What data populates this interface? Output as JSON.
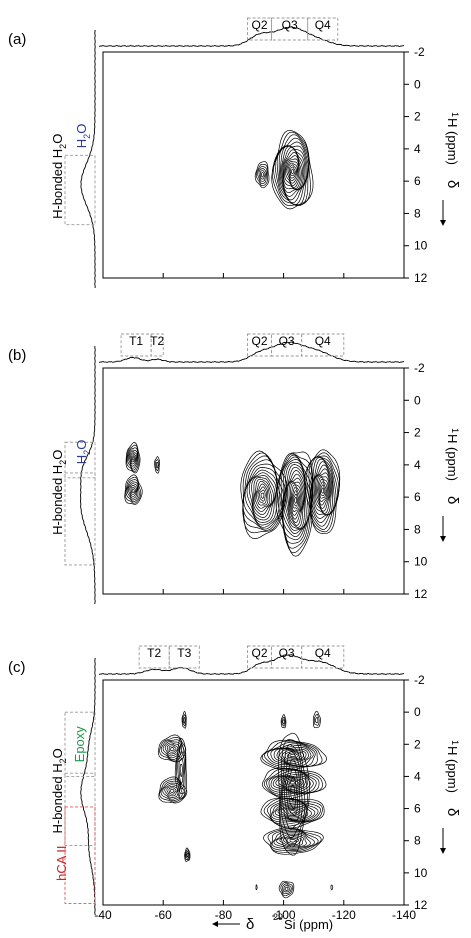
{
  "figure": {
    "x_axis_label_delta": "δ",
    "x_axis_label_nucleus": "29",
    "x_axis_label_rest": "Si (ppm)",
    "y_axis_label_nucleus": "1",
    "y_axis_label_rest": "H (ppm)",
    "y_axis_delta": "δ"
  },
  "chart_data": [
    {
      "type": "heatmap",
      "panel_label": "(a)",
      "xlim": [
        -40,
        -140
      ],
      "ylim": [
        -2,
        12
      ],
      "x_ticks": [
        -40,
        -60,
        -80,
        -100,
        -120,
        -140
      ],
      "y_ticks": [
        -2,
        0,
        2,
        4,
        6,
        8,
        10,
        12
      ],
      "x_tick_labels_shown": false,
      "top_projection": {
        "regions": [
          {
            "label": "Q2",
            "x_range": [
              -88,
              -96
            ]
          },
          {
            "label": "Q3",
            "x_range": [
              -96,
              -108
            ]
          },
          {
            "label": "Q4",
            "x_range": [
              -108,
              -118
            ]
          }
        ],
        "peaks": [
          {
            "x": -92,
            "height": 0.55,
            "width": 3.5
          },
          {
            "x": -102,
            "height": 1.0,
            "width": 5.0
          },
          {
            "x": -111,
            "height": 0.3,
            "width": 4.5
          }
        ]
      },
      "left_projection": {
        "annotations": [
          {
            "label": "H-bonded H",
            "sub": "2",
            "tail": "O",
            "color": "#000000"
          },
          {
            "label": "H",
            "sub": "2",
            "tail": "O",
            "color": "#2b3a9c"
          }
        ],
        "regions": [
          {
            "y_range": [
              4.4,
              8.7
            ]
          }
        ],
        "peaks": [
          {
            "y": 6.2,
            "height": 1.0,
            "width": 1.3
          }
        ]
      },
      "contours": [
        {
          "x": -103,
          "y": 5.4,
          "rx": 6.5,
          "ry": 2.4,
          "levels": 18
        },
        {
          "x": -93,
          "y": 5.6,
          "rx": 2.2,
          "ry": 0.8,
          "levels": 6
        }
      ]
    },
    {
      "type": "heatmap",
      "panel_label": "(b)",
      "xlim": [
        -40,
        -140
      ],
      "ylim": [
        -2,
        12
      ],
      "x_ticks": [
        -40,
        -60,
        -80,
        -100,
        -120,
        -140
      ],
      "y_ticks": [
        -2,
        0,
        2,
        4,
        6,
        8,
        10,
        12
      ],
      "x_tick_labels_shown": false,
      "top_projection": {
        "regions": [
          {
            "label": "T1",
            "x_range": [
              -46,
              -56
            ]
          },
          {
            "label": "T2",
            "x_range": [
              -56,
              -60
            ]
          },
          {
            "label": "Q2",
            "x_range": [
              -88,
              -96
            ]
          },
          {
            "label": "Q3",
            "x_range": [
              -96,
              -106
            ]
          },
          {
            "label": "Q4",
            "x_range": [
              -106,
              -120
            ]
          }
        ],
        "peaks": [
          {
            "x": -50,
            "height": 0.25,
            "width": 2.5
          },
          {
            "x": -58,
            "height": 0.15,
            "width": 2.0
          },
          {
            "x": -92,
            "height": 0.4,
            "width": 3.5
          },
          {
            "x": -101,
            "height": 1.0,
            "width": 5.0
          },
          {
            "x": -111,
            "height": 0.55,
            "width": 5.0
          }
        ]
      },
      "left_projection": {
        "annotations": [
          {
            "label": "H-bonded H",
            "sub": "2",
            "tail": "O",
            "color": "#000000"
          },
          {
            "label": "H",
            "sub": "2",
            "tail": "O",
            "color": "#2b3a9c"
          }
        ],
        "regions": [
          {
            "y_range": [
              2.6,
              4.8
            ]
          },
          {
            "y_range": [
              4.5,
              10.2
            ]
          }
        ],
        "peaks": [
          {
            "y": 4.2,
            "height": 0.55,
            "width": 0.9
          },
          {
            "y": 6.5,
            "height": 1.0,
            "width": 1.6
          }
        ]
      },
      "contours": [
        {
          "x": -50,
          "y": 3.6,
          "rx": 2.3,
          "ry": 0.9,
          "levels": 8
        },
        {
          "x": -50,
          "y": 5.6,
          "rx": 2.8,
          "ry": 0.9,
          "levels": 8
        },
        {
          "x": -58,
          "y": 4.0,
          "rx": 0.8,
          "ry": 0.5,
          "levels": 3
        },
        {
          "x": -93,
          "y": 5.9,
          "rx": 7.5,
          "ry": 2.6,
          "levels": 16
        },
        {
          "x": -104,
          "y": 6.2,
          "rx": 6.0,
          "ry": 3.2,
          "levels": 18
        },
        {
          "x": -113,
          "y": 5.6,
          "rx": 5.5,
          "ry": 2.6,
          "levels": 16
        }
      ]
    },
    {
      "type": "heatmap",
      "panel_label": "(c)",
      "xlim": [
        -40,
        -140
      ],
      "ylim": [
        -2,
        12
      ],
      "x_ticks": [
        -40,
        -60,
        -80,
        -100,
        -120,
        -140
      ],
      "y_ticks": [
        -2,
        0,
        2,
        4,
        6,
        8,
        10,
        12
      ],
      "x_tick_labels_shown": true,
      "top_projection": {
        "regions": [
          {
            "label": "T2",
            "x_range": [
              -52,
              -62
            ]
          },
          {
            "label": "T3",
            "x_range": [
              -62,
              -72
            ]
          },
          {
            "label": "Q2",
            "x_range": [
              -88,
              -96
            ]
          },
          {
            "label": "Q3",
            "x_range": [
              -96,
              -106
            ]
          },
          {
            "label": "Q4",
            "x_range": [
              -106,
              -120
            ]
          }
        ],
        "peaks": [
          {
            "x": -57,
            "height": 0.25,
            "width": 3.0
          },
          {
            "x": -66,
            "height": 0.35,
            "width": 3.0
          },
          {
            "x": -92,
            "height": 0.45,
            "width": 3.0
          },
          {
            "x": -101,
            "height": 1.0,
            "width": 4.5
          },
          {
            "x": -112,
            "height": 0.65,
            "width": 5.0
          }
        ]
      },
      "left_projection": {
        "annotations": [
          {
            "label": "Epoxy",
            "sub": "",
            "tail": "",
            "color": "#1b9a4a"
          },
          {
            "label": "H-bonded H",
            "sub": "2",
            "tail": "O",
            "color": "#000000"
          },
          {
            "label": "hCA II",
            "sub": "",
            "tail": "",
            "color": "#cc2222"
          }
        ],
        "regions": [
          {
            "y_range": [
              0.0,
              4.0
            ]
          },
          {
            "y_range": [
              3.8,
              8.3
            ]
          },
          {
            "y_range": [
              5.9,
              11.9
            ]
          }
        ],
        "region_colors": [
          "#999999",
          "#999999",
          "#e05555"
        ],
        "peaks": [
          {
            "y": 2.0,
            "height": 0.35,
            "width": 1.0
          },
          {
            "y": 5.0,
            "height": 1.0,
            "width": 1.4
          },
          {
            "y": 8.5,
            "height": 0.4,
            "width": 1.2
          }
        ]
      },
      "contours": [
        {
          "x": -63,
          "y": 2.3,
          "rx": 4.5,
          "ry": 0.8,
          "levels": 8
        },
        {
          "x": -63,
          "y": 4.9,
          "rx": 4.5,
          "ry": 0.8,
          "levels": 8
        },
        {
          "x": -66,
          "y": 3.6,
          "rx": 1.8,
          "ry": 1.9,
          "levels": 5
        },
        {
          "x": -67,
          "y": 0.5,
          "rx": 0.7,
          "ry": 0.5,
          "levels": 3
        },
        {
          "x": -68,
          "y": 8.9,
          "rx": 0.9,
          "ry": 0.4,
          "levels": 4
        },
        {
          "x": -103,
          "y": 2.7,
          "rx": 10.5,
          "ry": 0.9,
          "levels": 12
        },
        {
          "x": -103,
          "y": 4.4,
          "rx": 10.5,
          "ry": 0.9,
          "levels": 12
        },
        {
          "x": -103,
          "y": 6.2,
          "rx": 10.5,
          "ry": 0.9,
          "levels": 12
        },
        {
          "x": -103,
          "y": 8.0,
          "rx": 9.5,
          "ry": 0.8,
          "levels": 10
        },
        {
          "x": -103,
          "y": 5.0,
          "rx": 5.0,
          "ry": 3.8,
          "levels": 8
        },
        {
          "x": -100,
          "y": 0.6,
          "rx": 0.8,
          "ry": 0.4,
          "levels": 3
        },
        {
          "x": -111,
          "y": 0.5,
          "rx": 1.2,
          "ry": 0.5,
          "levels": 3
        },
        {
          "x": -101,
          "y": 11.0,
          "rx": 2.4,
          "ry": 0.5,
          "levels": 5
        },
        {
          "x": -91,
          "y": 10.9,
          "rx": 0.2,
          "ry": 0.15,
          "levels": 1
        },
        {
          "x": -116,
          "y": 10.9,
          "rx": 0.3,
          "ry": 0.15,
          "levels": 1
        }
      ]
    }
  ]
}
